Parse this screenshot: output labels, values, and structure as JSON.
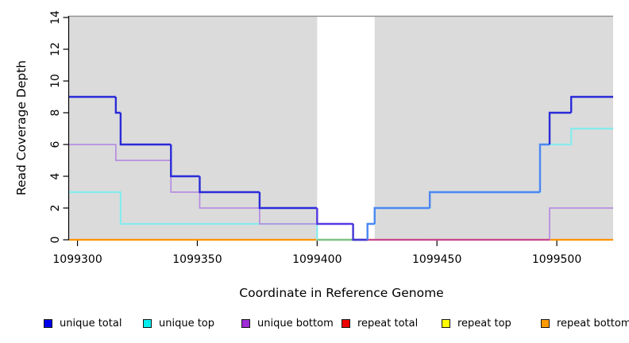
{
  "figure": {
    "x_axis_label": "Coordinate in Reference Genome",
    "y_axis_label": "Read Coverage Depth"
  },
  "legend": {
    "items": [
      {
        "label": "unique total",
        "color": "#0000EE"
      },
      {
        "label": "unique top",
        "color": "#00EEEE"
      },
      {
        "label": "unique bottom",
        "color": "#9D2BD6"
      },
      {
        "label": "repeat total",
        "color": "#EE0000"
      },
      {
        "label": "repeat top",
        "color": "#FFFF00"
      },
      {
        "label": "repeat bottom",
        "color": "#FF9900"
      }
    ]
  },
  "chart_data": {
    "type": "line",
    "subtype": "step",
    "title": "",
    "xlabel": "Coordinate in Reference Genome",
    "ylabel": "Read Coverage Depth",
    "xlim": [
      1099296.5,
      1099523.5
    ],
    "ylim": [
      0,
      14
    ],
    "x_tick_values": [
      1099300,
      1099350,
      1099400,
      1099450,
      1099500
    ],
    "y_tick_values": [
      0,
      2,
      4,
      6,
      8,
      10,
      12,
      14
    ],
    "grid": false,
    "legend_position": "bottom",
    "plot_background": "#ffffff",
    "shade_color": "#DBDBDB",
    "shaded_regions": [
      [
        1099296.5,
        1099400
      ],
      [
        1099424,
        1099523.5
      ]
    ],
    "series": [
      {
        "name": "unique total",
        "legend_color": "#0000EE",
        "steps": [
          [
            1099296.5,
            9
          ],
          [
            1099316,
            8
          ],
          [
            1099318,
            6
          ],
          [
            1099339,
            4
          ],
          [
            1099351,
            3
          ],
          [
            1099376,
            2
          ],
          [
            1099400,
            1
          ],
          [
            1099415,
            0
          ],
          [
            1099421,
            1
          ],
          [
            1099424,
            2
          ],
          [
            1099447,
            3
          ],
          [
            1099493,
            6
          ],
          [
            1099497,
            8
          ],
          [
            1099506,
            9
          ],
          [
            1099523.5,
            9
          ]
        ]
      },
      {
        "name": "unique top",
        "legend_color": "#00EEEE",
        "steps": [
          [
            1099296.5,
            3
          ],
          [
            1099318,
            1
          ],
          [
            1099400,
            0
          ],
          [
            1099421,
            1
          ],
          [
            1099424,
            2
          ],
          [
            1099447,
            3
          ],
          [
            1099493,
            6
          ],
          [
            1099506,
            7
          ],
          [
            1099523.5,
            7
          ]
        ]
      },
      {
        "name": "unique bottom",
        "legend_color": "#9D2BD6",
        "steps": [
          [
            1099296.5,
            6
          ],
          [
            1099316,
            5
          ],
          [
            1099339,
            3
          ],
          [
            1099351,
            2
          ],
          [
            1099376,
            1
          ],
          [
            1099415,
            0
          ],
          [
            1099497,
            2
          ],
          [
            1099523.5,
            2
          ]
        ]
      },
      {
        "name": "repeat total",
        "legend_color": "#EE0000",
        "steps": [
          [
            1099296.5,
            0
          ],
          [
            1099523.5,
            0
          ]
        ]
      },
      {
        "name": "repeat top",
        "legend_color": "#FFFF00",
        "steps": [
          [
            1099296.5,
            0
          ],
          [
            1099523.5,
            0
          ]
        ]
      },
      {
        "name": "repeat bottom",
        "legend_color": "#FF9900",
        "steps": [
          [
            1099296.5,
            0
          ],
          [
            1099523.5,
            0
          ]
        ]
      }
    ]
  }
}
